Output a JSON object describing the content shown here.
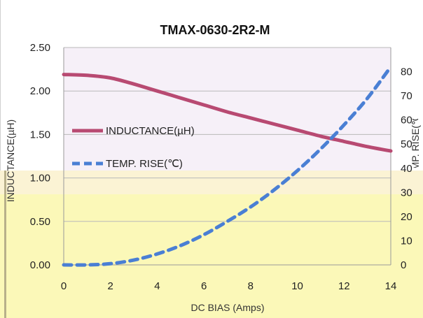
{
  "chart_data": {
    "type": "line",
    "title": "TMAX-0630-2R2-M",
    "xlabel": "DC BIAS  (Amps)",
    "ylabel_left": "INDUCTANCE(µH)",
    "ylabel_right": "TEMP. RISE(℃)",
    "xlim": [
      0,
      14
    ],
    "ylim_left": [
      0,
      2.5
    ],
    "ylim_right": [
      0,
      90
    ],
    "x_ticks": [
      "0",
      "2",
      "4",
      "6",
      "8",
      "10",
      "12",
      "14"
    ],
    "y_left_ticks": [
      "0.00",
      "0.50",
      "1.00",
      "1.50",
      "2.00",
      "2.50"
    ],
    "y_right_ticks": [
      "0",
      "10",
      "20",
      "30",
      "40",
      "50",
      "60",
      "70",
      "80"
    ],
    "series": [
      {
        "name": "INDUCTANCE(µH)",
        "axis": "left",
        "color": "#b84a72",
        "style": "solid",
        "x": [
          0,
          1,
          2,
          3,
          4,
          5,
          6,
          7,
          8,
          9,
          10,
          11,
          12,
          13,
          14
        ],
        "y": [
          2.19,
          2.18,
          2.15,
          2.08,
          2.0,
          1.92,
          1.84,
          1.76,
          1.69,
          1.62,
          1.55,
          1.48,
          1.42,
          1.36,
          1.31
        ]
      },
      {
        "name": "TEMP. RISE(℃)",
        "axis": "right",
        "color": "#4a7fd4",
        "style": "dashed",
        "x": [
          0,
          1,
          2,
          3,
          4,
          5,
          6,
          7,
          8,
          9,
          10,
          11,
          12,
          13,
          14
        ],
        "y": [
          0,
          0,
          0.5,
          2,
          4.5,
          8,
          12.5,
          18,
          24,
          31,
          39,
          48,
          58,
          69,
          82
        ]
      }
    ],
    "grid": true,
    "legend_position": "left-middle"
  }
}
